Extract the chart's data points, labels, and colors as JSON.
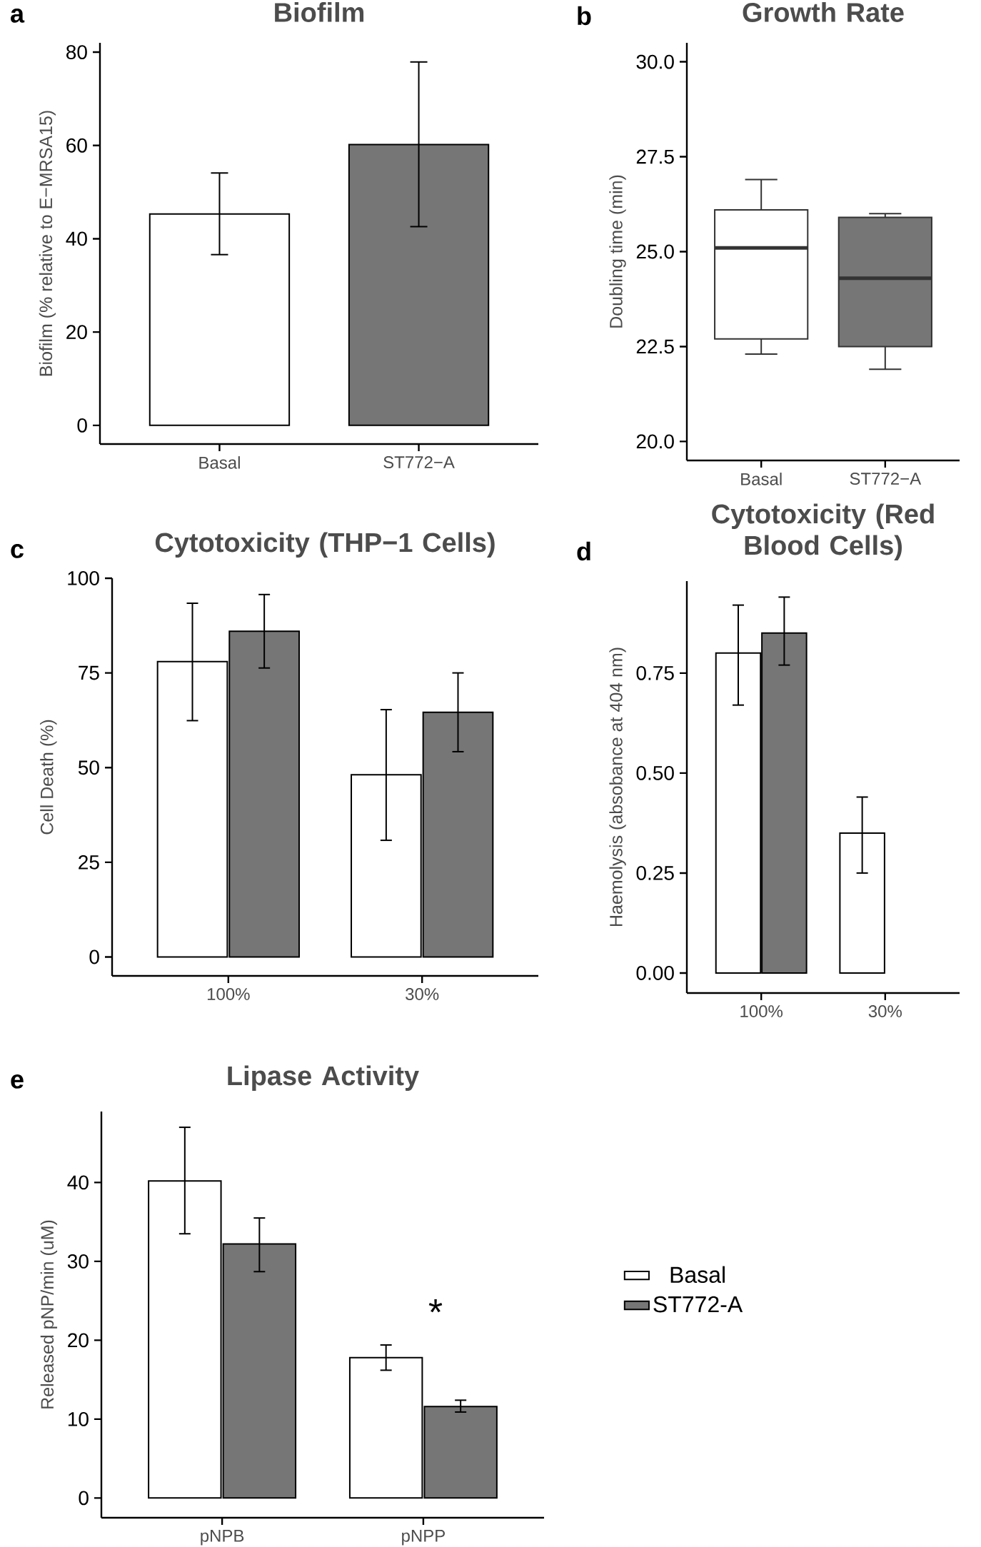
{
  "chart_data": [
    {
      "type": "bar",
      "title": "Biofilm",
      "ylabel": "Biofilm (% relative to E−MRSA15)",
      "categories": [
        "Basal",
        "ST772−A"
      ],
      "values": [
        45.3,
        60.2
      ],
      "colors": [
        "#ffffff",
        "#767676"
      ],
      "errors": [
        [
          36.6,
          54.1
        ],
        [
          42.6,
          77.9
        ]
      ],
      "ylim": [
        -4,
        82
      ],
      "yticks": [
        0,
        20,
        40,
        60,
        80
      ],
      "annotations": [
        "a"
      ]
    },
    {
      "type": "box",
      "title": "Growth Rate",
      "ylabel": "Doubling time (min)",
      "categories": [
        "Basal",
        "ST772−A"
      ],
      "colors": [
        "#ffffff",
        "#767676"
      ],
      "boxes": [
        {
          "low": 22.3,
          "q1": 22.7,
          "median": 25.1,
          "q3": 26.1,
          "high": 26.9
        },
        {
          "low": 21.9,
          "q1": 22.5,
          "median": 24.3,
          "q3": 25.9,
          "high": 26.0
        }
      ],
      "ylim": [
        19.5,
        30.5
      ],
      "yticks": [
        {
          "value": 20,
          "label": "20.0"
        },
        {
          "value": 22.5,
          "label": "22.5"
        },
        {
          "value": 25,
          "label": "25.0"
        },
        {
          "value": 27.5,
          "label": "27.5"
        },
        {
          "value": 30,
          "label": "30.0"
        }
      ],
      "annotations": [
        "b"
      ]
    },
    {
      "type": "bar",
      "title": "Cytotoxicity (THP−1 Cells)",
      "ylabel": "Cell Death (%)",
      "categories": [
        "100%",
        "30%"
      ],
      "series": [
        {
          "color": "#ffffff",
          "values": [
            78.0,
            48.1
          ],
          "errors": [
            [
              62.4,
              93.4
            ],
            [
              30.8,
              65.3
            ]
          ]
        },
        {
          "color": "#767676",
          "values": [
            86.0,
            64.6
          ],
          "errors": [
            [
              76.3,
              95.7
            ],
            [
              54.2,
              75.0
            ]
          ]
        }
      ],
      "ylim": [
        -5,
        100
      ],
      "yticks": [
        0,
        25,
        50,
        75,
        100
      ],
      "annotations": [
        "c"
      ]
    },
    {
      "type": "bar",
      "title": "Cytotoxicity (Red Blood Cells)",
      "ylabel": "Haemolysis (absobance at 404 nm)",
      "categories": [
        "100%",
        "30%"
      ],
      "series": [
        {
          "color": "#ffffff",
          "values": [
            0.8,
            0.35
          ],
          "errors": [
            [
              0.67,
              0.92
            ],
            [
              0.25,
              0.44
            ]
          ]
        },
        {
          "color": "#767676",
          "values": [
            0.85,
            null
          ],
          "errors": [
            [
              0.77,
              0.94
            ],
            null
          ]
        }
      ],
      "ylim": [
        -0.05,
        0.98
      ],
      "yticks": [
        {
          "value": 0,
          "label": "0.00"
        },
        {
          "value": 0.25,
          "label": "0.25"
        },
        {
          "value": 0.5,
          "label": "0.50"
        },
        {
          "value": 0.75,
          "label": "0.75"
        }
      ],
      "annotations": [
        "d"
      ]
    },
    {
      "type": "bar",
      "title": "Lipase Activity",
      "ylabel": "Released pNP/min (uM)",
      "categories": [
        "pNPB",
        "pNPP"
      ],
      "legend": "right",
      "series": [
        {
          "name": "Basal",
          "color": "#ffffff",
          "values": [
            40.2,
            17.8
          ],
          "errors": [
            [
              33.5,
              47.0
            ],
            [
              16.2,
              19.4
            ]
          ]
        },
        {
          "name": "ST772-A",
          "color": "#767676",
          "values": [
            32.2,
            11.6
          ],
          "errors": [
            [
              28.7,
              35.5
            ],
            [
              10.9,
              12.4
            ]
          ]
        }
      ],
      "ylim": [
        -2.5,
        49
      ],
      "yticks": [
        0,
        10,
        20,
        30,
        40
      ],
      "annotations": [
        "e",
        "*"
      ]
    }
  ]
}
